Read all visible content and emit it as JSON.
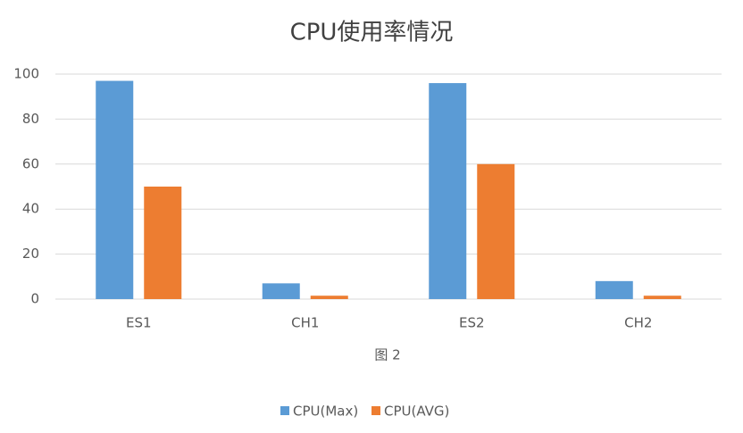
{
  "chart_data": {
    "type": "bar",
    "title": "CPU使用率情况",
    "x_label": "图 2",
    "categories": [
      "ES1",
      "CH1",
      "ES2",
      "CH2"
    ],
    "series": [
      {
        "name": "CPU(Max)",
        "color": "#5b9bd5",
        "values": [
          97,
          7,
          96,
          8
        ]
      },
      {
        "name": "CPU(AVG)",
        "color": "#ed7d31",
        "values": [
          50,
          1.5,
          60,
          1.5
        ]
      }
    ],
    "ylim": [
      0,
      100
    ],
    "yticks": [
      0,
      20,
      40,
      60,
      80,
      100
    ],
    "grid": true,
    "legend": "bottom"
  }
}
